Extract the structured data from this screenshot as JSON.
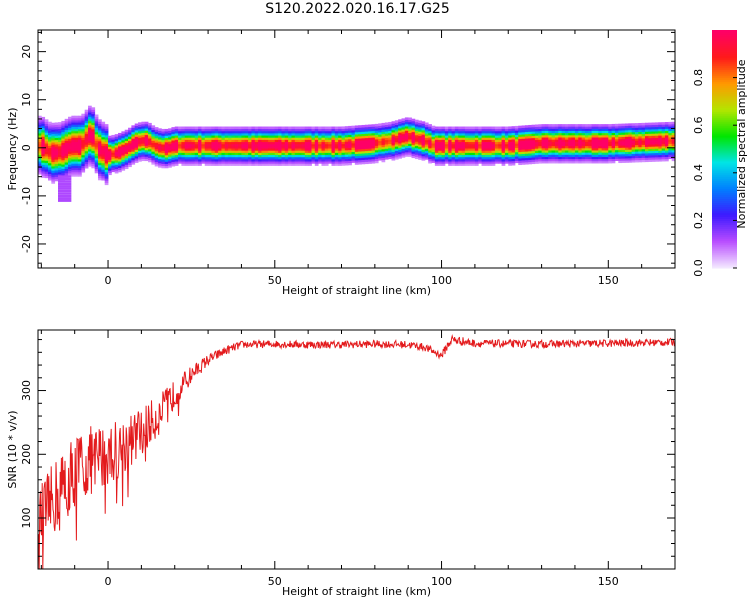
{
  "figure": {
    "title": "S120.2022.020.16.17.G25"
  },
  "chart_data": [
    {
      "type": "heatmap",
      "title": "",
      "xlabel": "Height of straight line (km)",
      "ylabel": "Frequency (Hz)",
      "xlim": [
        -21,
        170
      ],
      "ylim": [
        -25,
        24.5
      ],
      "xticks": [
        0,
        50,
        100,
        150
      ],
      "xtick_labels": [
        "0",
        "50",
        "100",
        "150"
      ],
      "yticks": [
        -20,
        -10,
        0,
        10,
        20
      ],
      "ytick_labels": [
        "-20",
        "-10",
        "0",
        "10",
        "20"
      ],
      "ridge_x": [
        -20,
        -17,
        -14,
        -11,
        -8,
        -5,
        -3,
        0,
        3,
        6,
        8,
        10,
        12,
        14,
        16,
        18,
        20,
        25,
        40,
        60,
        70,
        80,
        85,
        90,
        92,
        95,
        98,
        105,
        120,
        130,
        150,
        170
      ],
      "ridge_y": [
        0.5,
        -1.0,
        -0.8,
        0.5,
        0.5,
        3.0,
        0.0,
        -1.5,
        -1.0,
        0.0,
        1.0,
        1.5,
        1.5,
        0.5,
        0.0,
        0.0,
        0.5,
        0.5,
        0.5,
        0.5,
        0.5,
        1.0,
        1.5,
        2.5,
        2.0,
        1.5,
        0.5,
        0.5,
        0.5,
        1.0,
        1.0,
        1.5
      ],
      "colorbar": {
        "label": "Normalized spectral amplitude",
        "range": [
          0,
          1
        ],
        "ticks": [
          0.0,
          0.2,
          0.4,
          0.6,
          0.8
        ],
        "tick_labels": [
          "0.0",
          "0.2",
          "0.4",
          "0.6",
          "0.8"
        ],
        "colors": [
          "#f2e6ff",
          "#b84cff",
          "#3d1aff",
          "#0080ff",
          "#00e5e5",
          "#00e600",
          "#b3e600",
          "#ff9900",
          "#ff1a1a",
          "#ff0066"
        ]
      }
    },
    {
      "type": "line",
      "title": "",
      "xlabel": "Height of straight line (km)",
      "ylabel": "SNR (10 * v/v)",
      "xlim": [
        -21,
        170
      ],
      "ylim": [
        20,
        395
      ],
      "xticks": [
        0,
        50,
        100,
        150
      ],
      "xtick_labels": [
        "0",
        "50",
        "100",
        "150"
      ],
      "yticks": [
        100,
        200,
        300
      ],
      "ytick_labels": [
        "100",
        "200",
        "300"
      ],
      "series": [
        {
          "color": "#e31a1c",
          "envelope_x": [
            -21,
            -15,
            -10,
            -5,
            0,
            5,
            10,
            15,
            20,
            25,
            30,
            35,
            40,
            50,
            60,
            70,
            80,
            90,
            95,
            98,
            100,
            102,
            103,
            110,
            130,
            150,
            170
          ],
          "envelope_y": [
            90,
            140,
            175,
            190,
            200,
            215,
            235,
            260,
            295,
            325,
            348,
            362,
            372,
            373,
            372,
            372,
            373,
            372,
            368,
            360,
            355,
            372,
            380,
            374,
            373,
            374,
            376
          ],
          "noise_amplitude": [
            55,
            60,
            60,
            55,
            50,
            45,
            40,
            32,
            22,
            14,
            9,
            7,
            6,
            6,
            6,
            6,
            6,
            6,
            6,
            6,
            6,
            8,
            8,
            6,
            6,
            6,
            6
          ]
        }
      ]
    }
  ]
}
